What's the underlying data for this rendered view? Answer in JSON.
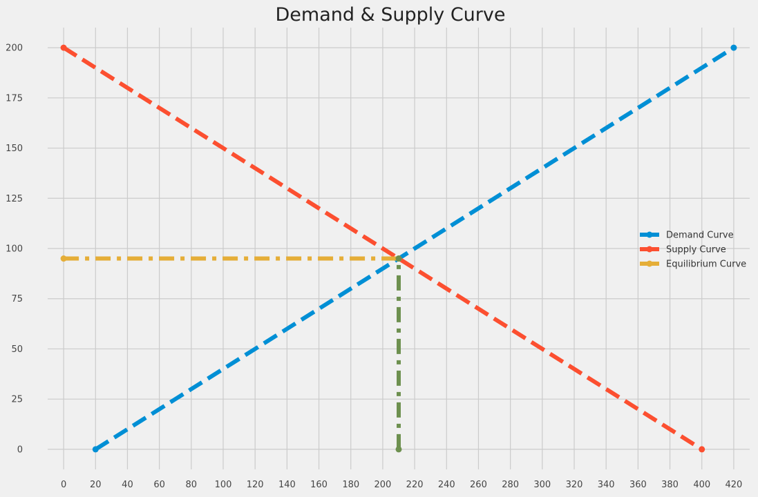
{
  "chart_data": {
    "type": "line",
    "title": "Demand & Supply Curve",
    "xlabel": "",
    "ylabel": "",
    "xlim": [
      -10,
      430
    ],
    "ylim": [
      -10,
      210
    ],
    "xticks": [
      0,
      20,
      40,
      60,
      80,
      100,
      120,
      140,
      160,
      180,
      200,
      220,
      240,
      260,
      280,
      300,
      320,
      340,
      360,
      380,
      400,
      420
    ],
    "yticks": [
      0,
      25,
      50,
      75,
      100,
      125,
      150,
      175,
      200
    ],
    "grid": true,
    "legend_position": "center-right",
    "series": [
      {
        "name": "Demand Curve",
        "color": "#008fd5",
        "style": "dashed",
        "marker": "circle",
        "x": [
          20,
          420
        ],
        "y": [
          0,
          200
        ],
        "legend": true
      },
      {
        "name": "Supply Curve",
        "color": "#fc4f30",
        "style": "dashed",
        "marker": "circle",
        "x": [
          0,
          400
        ],
        "y": [
          200,
          0
        ],
        "legend": true
      },
      {
        "name": "Equilibrium Curve",
        "color": "#e5ae38",
        "style": "dashdot",
        "marker": "circle",
        "x": [
          0,
          210
        ],
        "y": [
          95,
          95
        ],
        "legend": true
      },
      {
        "name": "",
        "color": "#6d904f",
        "style": "dashdot",
        "marker": "circle",
        "x": [
          210,
          210
        ],
        "y": [
          0,
          95
        ],
        "legend": false
      }
    ]
  }
}
